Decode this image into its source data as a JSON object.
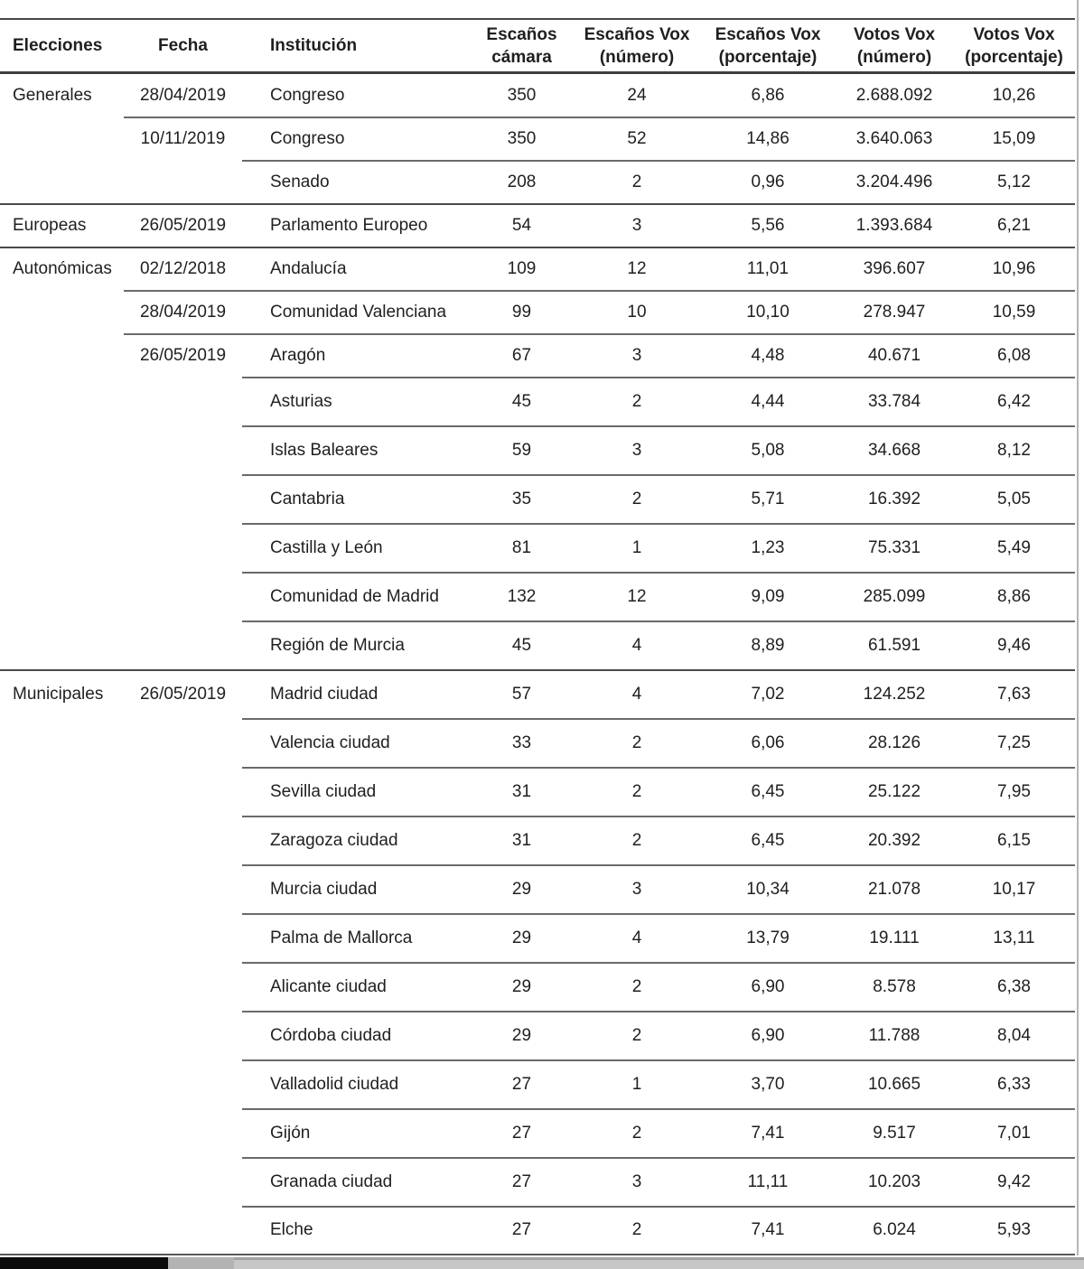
{
  "table": {
    "columns": [
      "Elecciones",
      "Fecha",
      "Institución",
      "Escaños\ncámara",
      "Escaños Vox\n(número)",
      "Escaños Vox\n(porcentaje)",
      "Votos Vox\n(número)",
      "Votos Vox\n(porcentaje)"
    ],
    "rows": [
      {
        "elecciones": "Generales",
        "fecha": "28/04/2019",
        "institucion": "Congreso",
        "escanos_camara": "350",
        "escanos_vox_numero": "24",
        "escanos_vox_porcentaje": "6,86",
        "votos_vox_numero": "2.688.092",
        "votos_vox_porcentaje": "10,26"
      },
      {
        "elecciones": "",
        "fecha": "10/11/2019",
        "institucion": "Congreso",
        "escanos_camara": "350",
        "escanos_vox_numero": "52",
        "escanos_vox_porcentaje": "14,86",
        "votos_vox_numero": "3.640.063",
        "votos_vox_porcentaje": "15,09"
      },
      {
        "elecciones": "",
        "fecha": "",
        "institucion": "Senado",
        "escanos_camara": "208",
        "escanos_vox_numero": "2",
        "escanos_vox_porcentaje": "0,96",
        "votos_vox_numero": "3.204.496",
        "votos_vox_porcentaje": "5,12"
      },
      {
        "elecciones": "Europeas",
        "fecha": "26/05/2019",
        "institucion": "Parlamento Europeo",
        "escanos_camara": "54",
        "escanos_vox_numero": "3",
        "escanos_vox_porcentaje": "5,56",
        "votos_vox_numero": "1.393.684",
        "votos_vox_porcentaje": "6,21"
      },
      {
        "elecciones": "Autonómicas",
        "fecha": "02/12/2018",
        "institucion": "Andalucía",
        "escanos_camara": "109",
        "escanos_vox_numero": "12",
        "escanos_vox_porcentaje": "11,01",
        "votos_vox_numero": "396.607",
        "votos_vox_porcentaje": "10,96"
      },
      {
        "elecciones": "",
        "fecha": "28/04/2019",
        "institucion": "Comunidad Valenciana",
        "escanos_camara": "99",
        "escanos_vox_numero": "10",
        "escanos_vox_porcentaje": "10,10",
        "votos_vox_numero": "278.947",
        "votos_vox_porcentaje": "10,59"
      },
      {
        "elecciones": "",
        "fecha": "26/05/2019",
        "institucion": "Aragón",
        "escanos_camara": "67",
        "escanos_vox_numero": "3",
        "escanos_vox_porcentaje": "4,48",
        "votos_vox_numero": "40.671",
        "votos_vox_porcentaje": "6,08"
      },
      {
        "elecciones": "",
        "fecha": "",
        "institucion": "Asturias",
        "escanos_camara": "45",
        "escanos_vox_numero": "2",
        "escanos_vox_porcentaje": "4,44",
        "votos_vox_numero": "33.784",
        "votos_vox_porcentaje": "6,42"
      },
      {
        "elecciones": "",
        "fecha": "",
        "institucion": "Islas Baleares",
        "escanos_camara": "59",
        "escanos_vox_numero": "3",
        "escanos_vox_porcentaje": "5,08",
        "votos_vox_numero": "34.668",
        "votos_vox_porcentaje": "8,12"
      },
      {
        "elecciones": "",
        "fecha": "",
        "institucion": "Cantabria",
        "escanos_camara": "35",
        "escanos_vox_numero": "2",
        "escanos_vox_porcentaje": "5,71",
        "votos_vox_numero": "16.392",
        "votos_vox_porcentaje": "5,05"
      },
      {
        "elecciones": "",
        "fecha": "",
        "institucion": "Castilla y León",
        "escanos_camara": "81",
        "escanos_vox_numero": "1",
        "escanos_vox_porcentaje": "1,23",
        "votos_vox_numero": "75.331",
        "votos_vox_porcentaje": "5,49"
      },
      {
        "elecciones": "",
        "fecha": "",
        "institucion": "Comunidad de Madrid",
        "escanos_camara": "132",
        "escanos_vox_numero": "12",
        "escanos_vox_porcentaje": "9,09",
        "votos_vox_numero": "285.099",
        "votos_vox_porcentaje": "8,86"
      },
      {
        "elecciones": "",
        "fecha": "",
        "institucion": "Región de Murcia",
        "escanos_camara": "45",
        "escanos_vox_numero": "4",
        "escanos_vox_porcentaje": "8,89",
        "votos_vox_numero": "61.591",
        "votos_vox_porcentaje": "9,46"
      },
      {
        "elecciones": "Municipales",
        "fecha": "26/05/2019",
        "institucion": "Madrid ciudad",
        "escanos_camara": "57",
        "escanos_vox_numero": "4",
        "escanos_vox_porcentaje": "7,02",
        "votos_vox_numero": "124.252",
        "votos_vox_porcentaje": "7,63"
      },
      {
        "elecciones": "",
        "fecha": "",
        "institucion": "Valencia ciudad",
        "escanos_camara": "33",
        "escanos_vox_numero": "2",
        "escanos_vox_porcentaje": "6,06",
        "votos_vox_numero": "28.126",
        "votos_vox_porcentaje": "7,25"
      },
      {
        "elecciones": "",
        "fecha": "",
        "institucion": "Sevilla ciudad",
        "escanos_camara": "31",
        "escanos_vox_numero": "2",
        "escanos_vox_porcentaje": "6,45",
        "votos_vox_numero": "25.122",
        "votos_vox_porcentaje": "7,95"
      },
      {
        "elecciones": "",
        "fecha": "",
        "institucion": "Zaragoza ciudad",
        "escanos_camara": "31",
        "escanos_vox_numero": "2",
        "escanos_vox_porcentaje": "6,45",
        "votos_vox_numero": "20.392",
        "votos_vox_porcentaje": "6,15"
      },
      {
        "elecciones": "",
        "fecha": "",
        "institucion": "Murcia ciudad",
        "escanos_camara": "29",
        "escanos_vox_numero": "3",
        "escanos_vox_porcentaje": "10,34",
        "votos_vox_numero": "21.078",
        "votos_vox_porcentaje": "10,17"
      },
      {
        "elecciones": "",
        "fecha": "",
        "institucion": "Palma de Mallorca",
        "escanos_camara": "29",
        "escanos_vox_numero": "4",
        "escanos_vox_porcentaje": "13,79",
        "votos_vox_numero": "19.111",
        "votos_vox_porcentaje": "13,11"
      },
      {
        "elecciones": "",
        "fecha": "",
        "institucion": "Alicante ciudad",
        "escanos_camara": "29",
        "escanos_vox_numero": "2",
        "escanos_vox_porcentaje": "6,90",
        "votos_vox_numero": "8.578",
        "votos_vox_porcentaje": "6,38"
      },
      {
        "elecciones": "",
        "fecha": "",
        "institucion": "Córdoba ciudad",
        "escanos_camara": "29",
        "escanos_vox_numero": "2",
        "escanos_vox_porcentaje": "6,90",
        "votos_vox_numero": "11.788",
        "votos_vox_porcentaje": "8,04"
      },
      {
        "elecciones": "",
        "fecha": "",
        "institucion": "Valladolid ciudad",
        "escanos_camara": "27",
        "escanos_vox_numero": "1",
        "escanos_vox_porcentaje": "3,70",
        "votos_vox_numero": "10.665",
        "votos_vox_porcentaje": "6,33"
      },
      {
        "elecciones": "",
        "fecha": "",
        "institucion": "Gijón",
        "escanos_camara": "27",
        "escanos_vox_numero": "2",
        "escanos_vox_porcentaje": "7,41",
        "votos_vox_numero": "9.517",
        "votos_vox_porcentaje": "7,01"
      },
      {
        "elecciones": "",
        "fecha": "",
        "institucion": "Granada ciudad",
        "escanos_camara": "27",
        "escanos_vox_numero": "3",
        "escanos_vox_porcentaje": "11,11",
        "votos_vox_numero": "10.203",
        "votos_vox_porcentaje": "9,42"
      },
      {
        "elecciones": "",
        "fecha": "",
        "institucion": "Elche",
        "escanos_camara": "27",
        "escanos_vox_numero": "2",
        "escanos_vox_porcentaje": "7,41",
        "votos_vox_numero": "6.024",
        "votos_vox_porcentaje": "5,93"
      }
    ]
  },
  "colors": {
    "text": "#1f1f1f",
    "divider_partial": "#6a6a6a",
    "divider_full": "#4a4a4a",
    "header_border": "#3e3e3e",
    "right_edge": "#b5b5b5",
    "strip_black": "#0b0b0b",
    "strip_gray_mid": "#b3b3b3",
    "strip_gray_light": "#c7c7c7"
  }
}
